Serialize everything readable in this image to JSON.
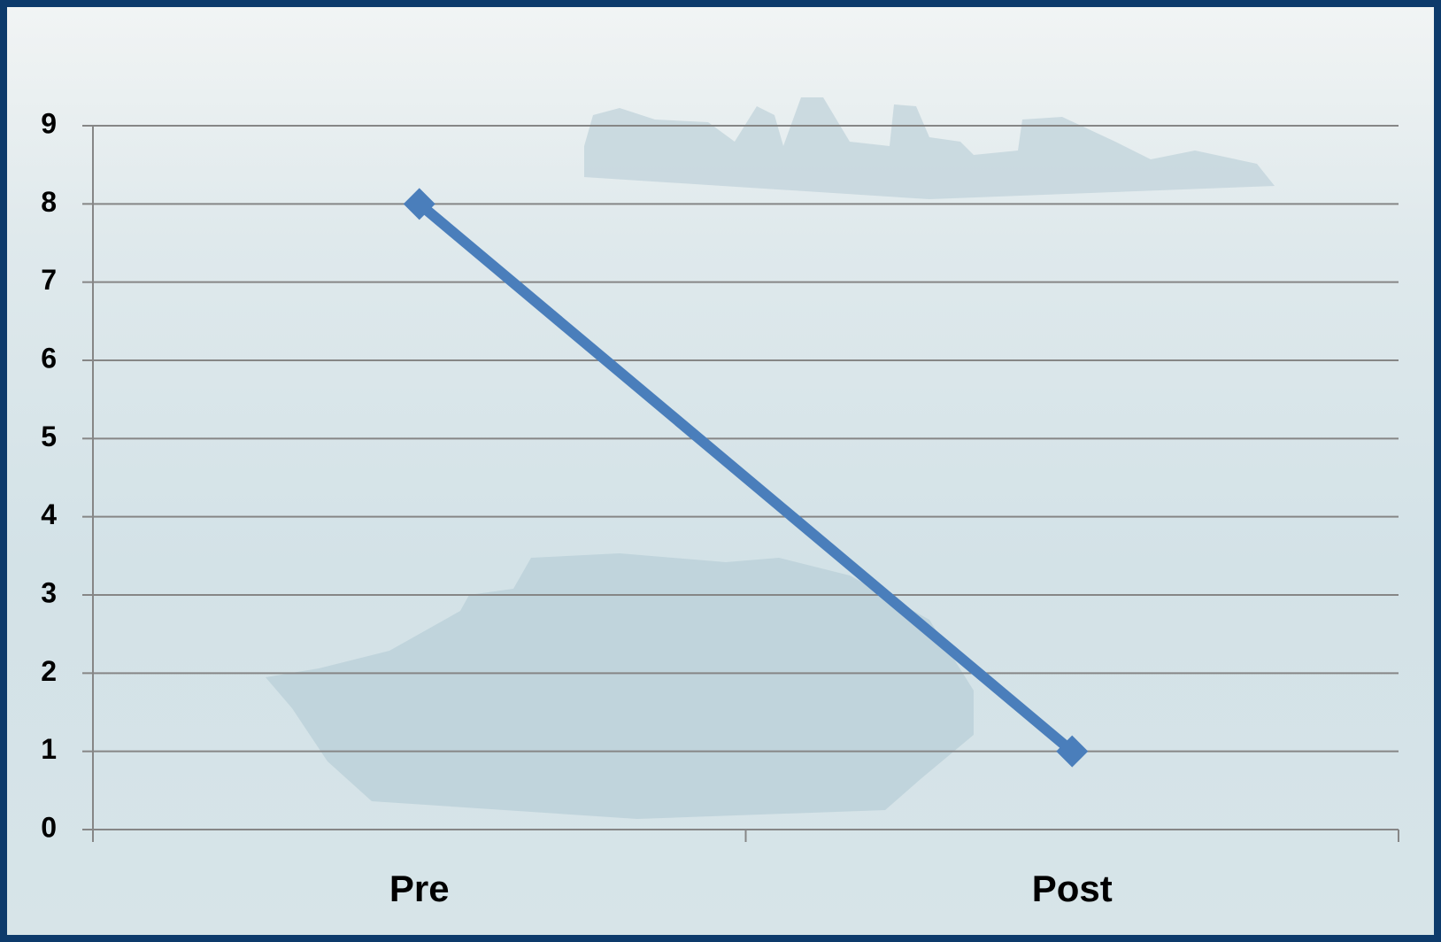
{
  "chart_data": {
    "type": "line",
    "categories": [
      "Pre",
      "Post"
    ],
    "values": [
      8,
      1
    ],
    "color": "#4a7ebb",
    "ylim": [
      0,
      9
    ],
    "yticks": [
      0,
      1,
      2,
      3,
      4,
      5,
      6,
      7,
      8,
      9
    ],
    "grid": true
  }
}
